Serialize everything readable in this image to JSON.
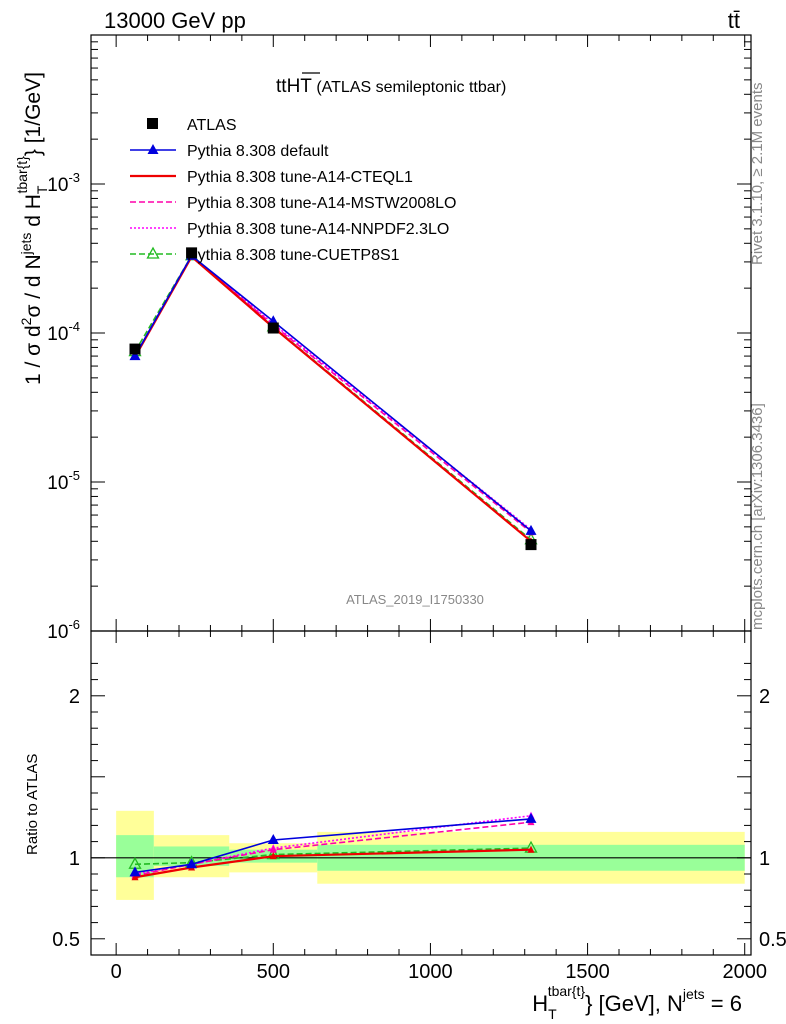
{
  "header": {
    "left": "13000 GeV pp",
    "right": "tt̄"
  },
  "side": {
    "rivet": "Rivet 3.1.10, ≥ 2.1M events",
    "mcplots": "mcplots.cern.ch [arXiv:1306.3436]"
  },
  "plot": {
    "title_main": "tt",
    "title_over": "HT",
    "title_rest": " (ATLAS semileptonic ttbar)",
    "watermark": "ATLAS_2019_I1750330",
    "ylabel": "1 / σ d²σ / d N^jets d H_T^tbar{t} [1/GeV]",
    "ratio_ylabel": "Ratio to ATLAS",
    "xlabel": "H_T^tbar{t} [GeV], N^jets = 6"
  },
  "axis_text": {
    "ylabel_a": "1 / σ d",
    "ylabel_sup2": "2",
    "ylabel_b": "σ / d N",
    "ylabel_jets": "jets",
    "ylabel_c": " d H",
    "ylabel_T": "T",
    "ylabel_tbar": "tbar{t}",
    "ylabel_d": "} [1/GeV]",
    "xlabel_a": "H",
    "xlabel_T": "T",
    "xlabel_tbar": "tbar{t}",
    "xlabel_b": "} [GeV], N",
    "xlabel_jets": "jets",
    "xlabel_c": " = 6"
  },
  "legend": [
    {
      "label": "ATLAS",
      "color": "#000000",
      "style": "data"
    },
    {
      "label": "Pythia 8.308 default",
      "color": "#0000dd",
      "style": "solid-tri"
    },
    {
      "label": "Pythia 8.308 tune-A14-CTEQL1",
      "color": "#ee0000",
      "style": "solid"
    },
    {
      "label": "Pythia 8.308 tune-A14-MSTW2008LO",
      "color": "#ff00aa",
      "style": "dashed"
    },
    {
      "label": "Pythia 8.308 tune-A14-NNPDF2.3LO",
      "color": "#ff00ff",
      "style": "dotted"
    },
    {
      "label": "Pythia 8.308 tune-CUETP8S1",
      "color": "#22bb22",
      "style": "dashed-opentri"
    }
  ],
  "chart_data": {
    "type": "line",
    "x_axis": {
      "range": [
        -80,
        2020
      ],
      "ticks": [
        0,
        500,
        1000,
        1500,
        2000
      ],
      "tick_labels": [
        "0",
        "500",
        "1000",
        "1500",
        "2000"
      ]
    },
    "main_y_axis": {
      "scale": "log",
      "range": [
        1e-06,
        0.01
      ],
      "tick_labels": [
        "10^-6",
        "10^-5",
        "10^-4",
        "10^-3"
      ]
    },
    "ratio_y_axis": {
      "range": [
        0.4,
        2.4
      ],
      "tick_labels": [
        "0.5",
        "1",
        "2"
      ]
    },
    "x": [
      60,
      240,
      500,
      1320
    ],
    "bin_edges": [
      0,
      120,
      360,
      640,
      2000
    ],
    "data": {
      "name": "ATLAS",
      "values": [
        7.8e-05,
        0.000345,
        0.000108,
        3.8e-06
      ],
      "band_inner": [
        [
          0.88,
          1.14
        ],
        [
          0.95,
          1.07
        ],
        [
          0.97,
          1.05
        ],
        [
          0.92,
          1.08
        ]
      ],
      "band_outer": [
        [
          0.74,
          1.29
        ],
        [
          0.88,
          1.14
        ],
        [
          0.91,
          1.09
        ],
        [
          0.84,
          1.16
        ]
      ]
    },
    "series": [
      {
        "name": "Pythia 8.308 default",
        "values": [
          7e-05,
          0.00033,
          0.00012,
          4.7e-06
        ],
        "ratio": [
          0.91,
          0.96,
          1.11,
          1.24
        ]
      },
      {
        "name": "Pythia 8.308 tune-A14-CTEQL1",
        "values": [
          6.9e-05,
          0.000325,
          0.000109,
          4e-06
        ],
        "ratio": [
          0.88,
          0.94,
          1.01,
          1.05
        ]
      },
      {
        "name": "Pythia 8.308 tune-A14-MSTW2008LO",
        "values": [
          7e-05,
          0.00033,
          0.000113,
          4.6e-06
        ],
        "ratio": [
          0.89,
          0.96,
          1.05,
          1.22
        ]
      },
      {
        "name": "Pythia 8.308 tune-A14-NNPDF2.3LO",
        "values": [
          7e-05,
          0.00033,
          0.000115,
          4.8e-06
        ],
        "ratio": [
          0.9,
          0.96,
          1.06,
          1.26
        ]
      },
      {
        "name": "Pythia 8.308 tune-CUETP8S1",
        "values": [
          7.5e-05,
          0.00033,
          0.00011,
          4.1e-06
        ],
        "ratio": [
          0.96,
          0.97,
          1.02,
          1.06
        ]
      }
    ]
  }
}
